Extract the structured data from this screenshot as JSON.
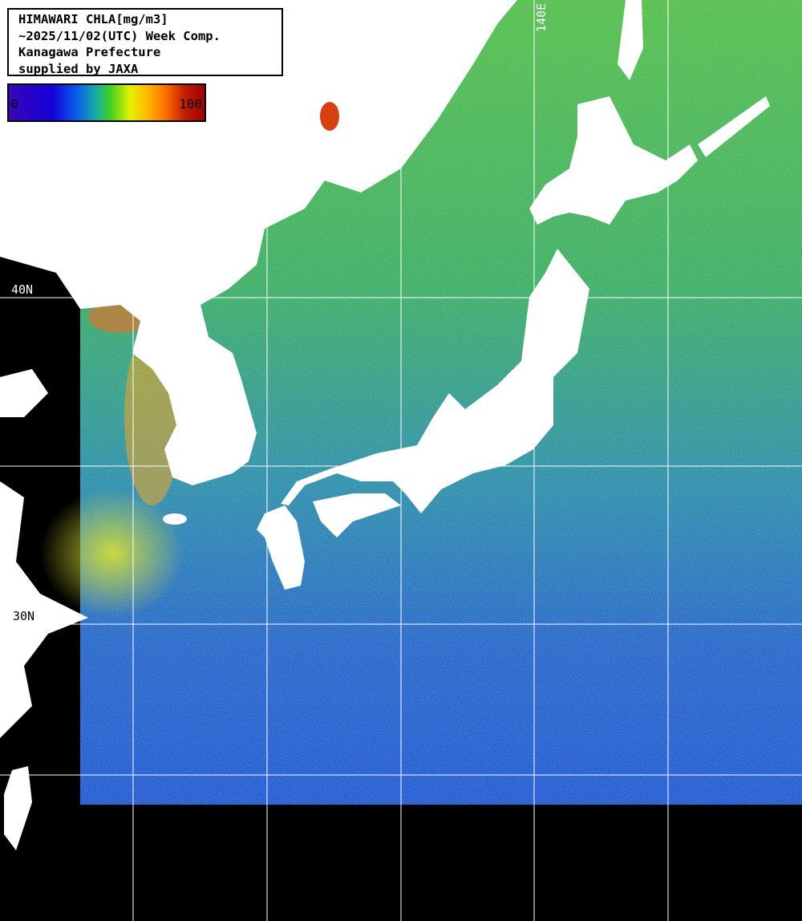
{
  "legend": {
    "title": "HIMAWARI CHLA[mg/m3]",
    "date_line": "~2025/11/02(UTC) Week Comp.",
    "region": "Kanagawa Prefecture",
    "credit": "supplied by JAXA"
  },
  "colorbar": {
    "min_label": "0",
    "max_label": "100",
    "colors": [
      "#3a06b8",
      "#1400d8",
      "#0860e8",
      "#18b0a0",
      "#40d020",
      "#e8f000",
      "#ffb000",
      "#ff7000",
      "#a00000"
    ]
  },
  "grid_labels": {
    "lat_40": "40N",
    "lat_30": "30N",
    "lon_140": "140E"
  },
  "colors": {
    "land": "#ffffff",
    "no_data": "#000000",
    "grid": "#ffffff"
  }
}
